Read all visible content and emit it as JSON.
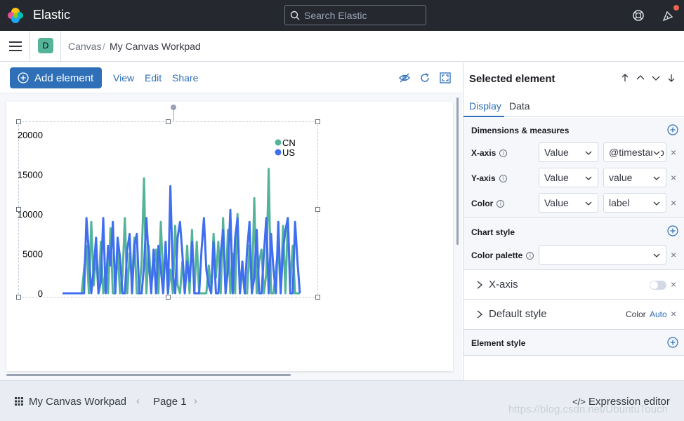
{
  "header": {
    "brand": "Elastic",
    "search_placeholder": "Search Elastic"
  },
  "nav": {
    "space_initial": "D",
    "breadcrumb_root": "Canvas",
    "breadcrumb_separator": "/",
    "breadcrumb_current": "My Canvas Workpad"
  },
  "toolbar": {
    "add_element": "Add element",
    "view": "View",
    "edit": "Edit",
    "share": "Share"
  },
  "sidebar": {
    "title": "Selected element",
    "tabs": [
      "Display",
      "Data"
    ],
    "active_tab": "Display",
    "dimensions": {
      "title": "Dimensions & measures",
      "rows": [
        {
          "label": "X-axis",
          "type": "Value",
          "field": "@timestamp"
        },
        {
          "label": "Y-axis",
          "type": "Value",
          "field": "value"
        },
        {
          "label": "Color",
          "type": "Value",
          "field": "label"
        }
      ]
    },
    "chart_style": {
      "title": "Chart style",
      "palette_label": "Color palette",
      "palette_value": ""
    },
    "xaxis_section": {
      "label": "X-axis",
      "enabled": false
    },
    "default_style": {
      "label": "Default style",
      "color_label": "Color",
      "color_value": "Auto"
    },
    "element_style": {
      "title": "Element style"
    }
  },
  "footer": {
    "workpad_title": "My Canvas Workpad",
    "prev": "‹",
    "page_label": "Page 1",
    "next": "›",
    "expression_icon": "</>",
    "expression_editor": "Expression editor",
    "watermark": "https://blog.csdn.net/UbuntuTouch"
  },
  "icons": {
    "search": "search-icon",
    "help": "help-icon",
    "news": "newsfeed-icon",
    "menu": "menu-icon",
    "add": "plus-circle-icon",
    "hide": "eye-closed-icon",
    "refresh": "refresh-icon",
    "fullscreen": "fullscreen-icon"
  },
  "colors": {
    "header_bg": "#25282f",
    "accent": "#2e6fb7",
    "cn_series": "#54b399",
    "us_series": "#3f6ff0",
    "news_dot": "#e7664c"
  },
  "chart_data": {
    "type": "line",
    "ylim": [
      0,
      20000
    ],
    "yticks": [
      "20000",
      "15000",
      "10000",
      "5000",
      "0"
    ],
    "legend_position": "top-right",
    "series": [
      {
        "name": "CN",
        "color": "#54b399",
        "values": [
          0,
          0,
          0,
          0,
          0,
          0,
          0,
          0,
          0,
          3000,
          6000,
          0,
          9000,
          1000,
          5000,
          0,
          6500,
          0,
          3000,
          0,
          8200,
          0,
          0,
          5500,
          0,
          2000,
          9500,
          0,
          5000,
          1500,
          7000,
          0,
          0,
          4000,
          14500,
          0,
          6000,
          1000,
          3000,
          5500,
          0,
          9000,
          1500,
          5500,
          0,
          3000,
          0,
          8500,
          1000,
          0,
          4000,
          0,
          6000,
          0,
          8000,
          0,
          6500,
          0,
          0,
          0,
          0,
          3500,
          0,
          7500,
          2000,
          6500,
          0,
          9500,
          0,
          8000,
          0,
          5000,
          0,
          10000,
          0,
          3000,
          0,
          0,
          6000,
          0,
          12000,
          0,
          4000,
          5500,
          0,
          2500,
          15700,
          0,
          0,
          3000,
          6000,
          0,
          8500,
          0,
          9500,
          1000,
          6000,
          0,
          0,
          0
        ]
      },
      {
        "name": "US",
        "color": "#3f6ff0",
        "values": [
          0,
          0,
          0,
          0,
          0,
          0,
          0,
          0,
          0,
          0,
          9500,
          5000,
          0,
          3000,
          7000,
          0,
          1500,
          9500,
          0,
          6000,
          3500,
          9000,
          0,
          7000,
          4500,
          0,
          0,
          5500,
          7500,
          0,
          6000,
          7500,
          0,
          0,
          3500,
          9500,
          4000,
          0,
          5500,
          0,
          6000,
          3000,
          0,
          6500,
          0,
          13500,
          2500,
          0,
          7000,
          9000,
          5000,
          0,
          4000,
          1500,
          6500,
          0,
          0,
          0,
          5500,
          9500,
          3000,
          1000,
          0,
          6500,
          0,
          0,
          5000,
          8000,
          0,
          3000,
          10500,
          0,
          7000,
          9500,
          0,
          4000,
          0,
          5500,
          9000,
          0,
          2000,
          8000,
          0,
          0,
          5000,
          9500,
          0,
          7500,
          3000,
          0,
          9000,
          0,
          5500,
          8000,
          9500,
          0,
          0,
          9000,
          4000,
          0
        ]
      }
    ]
  }
}
